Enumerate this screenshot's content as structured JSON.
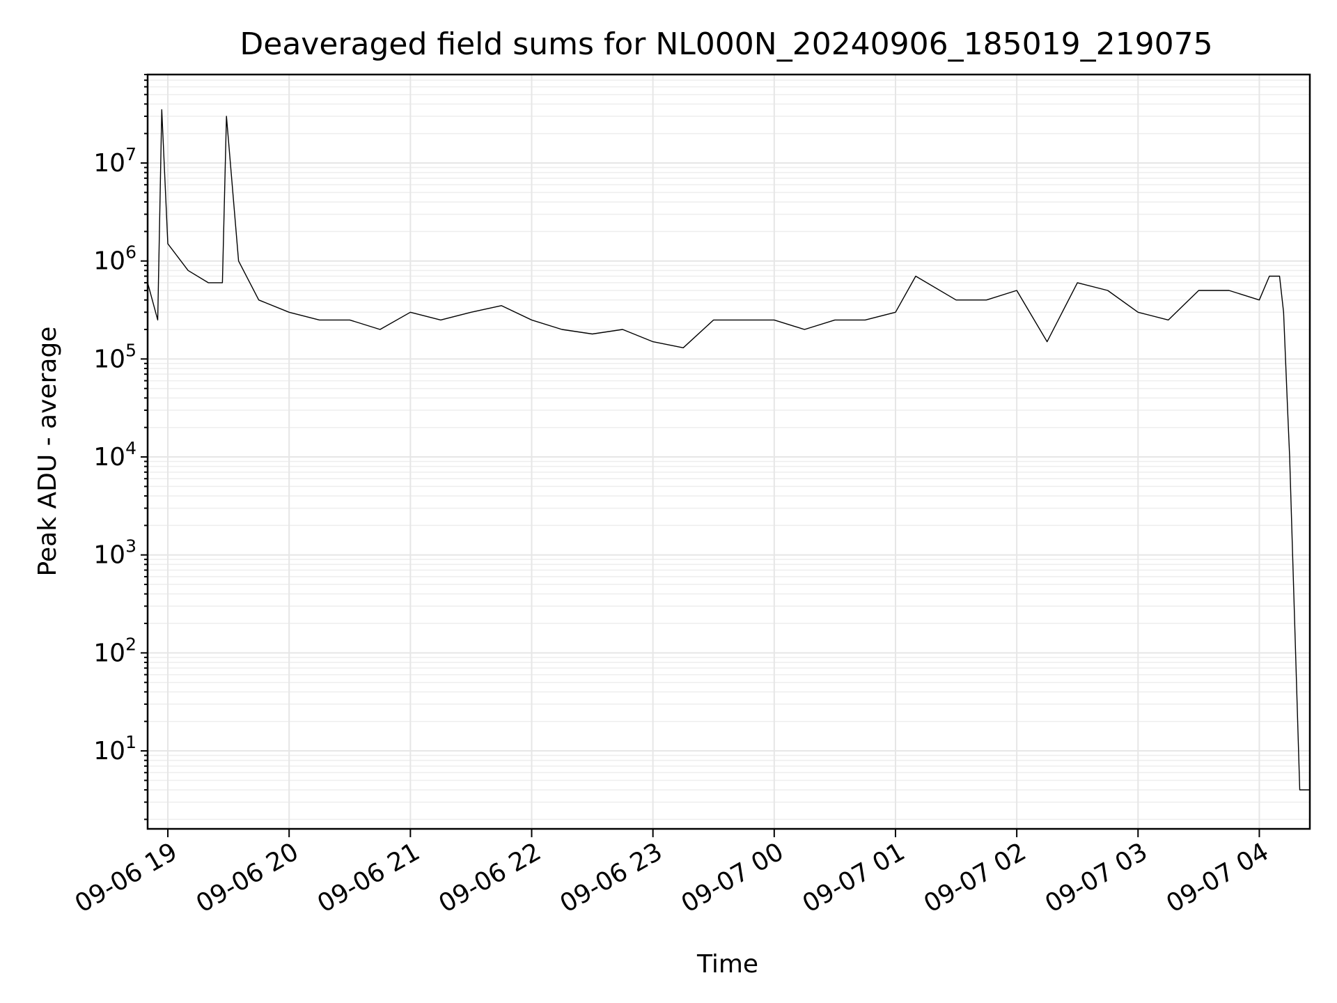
{
  "chart_data": {
    "type": "line",
    "title": "Deaveraged field sums for NL000N_20240906_185019_219075",
    "xlabel": "Time",
    "ylabel": "Peak ADU - average",
    "yscale": "log",
    "ylim": [
      1.6,
      80000000
    ],
    "xlim": [
      "2024-09-06 18:50",
      "2024-09-07 04:25"
    ],
    "grid": true,
    "x_ticks": [
      "09-06 19",
      "09-06 20",
      "09-06 21",
      "09-06 22",
      "09-06 23",
      "09-07 00",
      "09-07 01",
      "09-07 02",
      "09-07 03",
      "09-07 04"
    ],
    "y_ticks": [
      {
        "base": "10",
        "exp": "1"
      },
      {
        "base": "10",
        "exp": "2"
      },
      {
        "base": "10",
        "exp": "3"
      },
      {
        "base": "10",
        "exp": "4"
      },
      {
        "base": "10",
        "exp": "5"
      },
      {
        "base": "10",
        "exp": "6"
      },
      {
        "base": "10",
        "exp": "7"
      }
    ],
    "series": [
      {
        "x": [
          "2024-09-06 18:50",
          "2024-09-06 18:55",
          "2024-09-06 18:57",
          "2024-09-06 19:00",
          "2024-09-06 19:10",
          "2024-09-06 19:20",
          "2024-09-06 19:27",
          "2024-09-06 19:29",
          "2024-09-06 19:35",
          "2024-09-06 19:45",
          "2024-09-06 20:00",
          "2024-09-06 20:15",
          "2024-09-06 20:30",
          "2024-09-06 20:45",
          "2024-09-06 21:00",
          "2024-09-06 21:15",
          "2024-09-06 21:30",
          "2024-09-06 21:45",
          "2024-09-06 22:00",
          "2024-09-06 22:15",
          "2024-09-06 22:30",
          "2024-09-06 22:45",
          "2024-09-06 23:00",
          "2024-09-06 23:15",
          "2024-09-06 23:30",
          "2024-09-06 23:45",
          "2024-09-07 00:00",
          "2024-09-07 00:15",
          "2024-09-07 00:30",
          "2024-09-07 00:45",
          "2024-09-07 01:00",
          "2024-09-07 01:10",
          "2024-09-07 01:30",
          "2024-09-07 01:45",
          "2024-09-07 02:00",
          "2024-09-07 02:15",
          "2024-09-07 02:30",
          "2024-09-07 02:45",
          "2024-09-07 03:00",
          "2024-09-07 03:15",
          "2024-09-07 03:30",
          "2024-09-07 03:45",
          "2024-09-07 04:00",
          "2024-09-07 04:05",
          "2024-09-07 04:10",
          "2024-09-07 04:12",
          "2024-09-07 04:14",
          "2024-09-07 04:15",
          "2024-09-07 04:20",
          "2024-09-07 04:25"
        ],
        "y": [
          600000,
          250000,
          35000000,
          1500000,
          800000,
          600000,
          600000,
          30000000,
          1000000,
          400000,
          300000,
          250000,
          250000,
          200000,
          300000,
          250000,
          300000,
          350000,
          250000,
          200000,
          180000,
          200000,
          150000,
          130000,
          250000,
          250000,
          250000,
          200000,
          250000,
          250000,
          300000,
          700000,
          400000,
          400000,
          500000,
          150000,
          600000,
          500000,
          300000,
          250000,
          500000,
          500000,
          400000,
          700000,
          700000,
          300000,
          30000,
          10000,
          4,
          4
        ]
      }
    ]
  }
}
